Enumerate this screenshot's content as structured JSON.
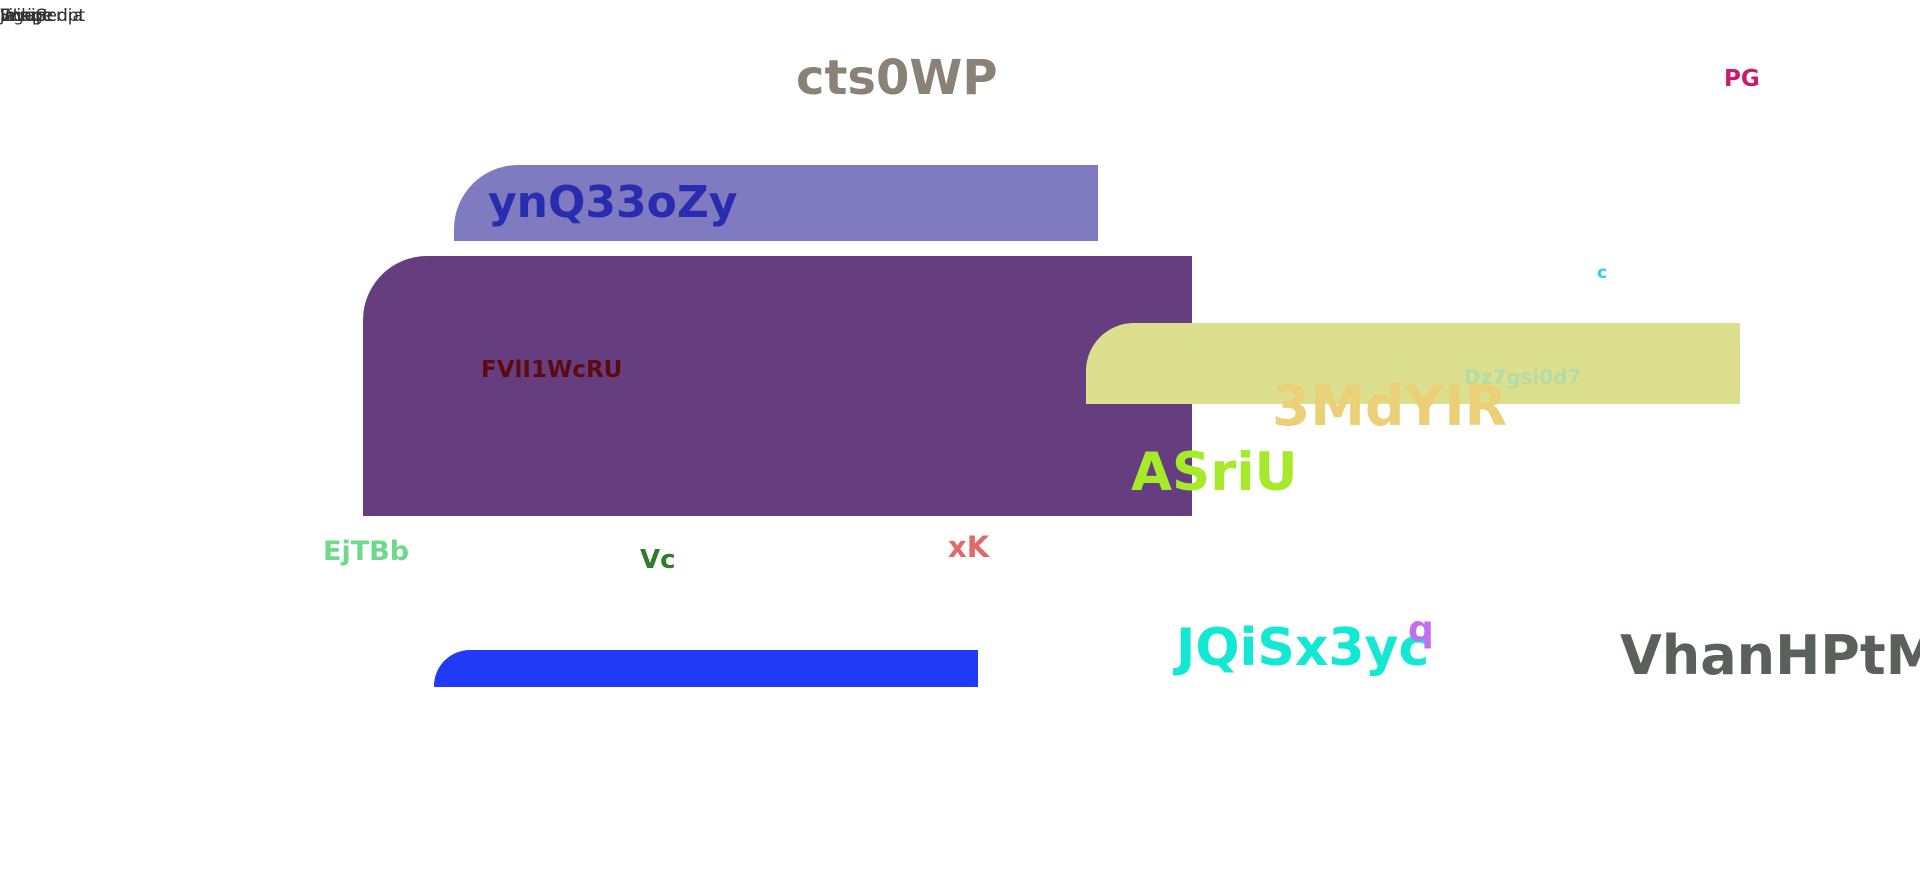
{
  "corner_labels": [
    "Wikipedia",
    "Image",
    "Figure",
    "Script",
    "JavaScript"
  ],
  "labels": {
    "title": "cts0WP",
    "top_right": "PG",
    "lavender_heading": "ynQ33oZy",
    "purple_text": "FVlI1WcRU",
    "tiny_c": "c",
    "faint_text": "Dz7gsi0d7",
    "orange_text": "3MdYIR",
    "lime_text": "ASriU",
    "green_left": "EjTBb",
    "green_dark": "Vc",
    "red_small": "xK",
    "cyan_text": "JQiSx3yc",
    "violet_small": "q",
    "gray_large": "VhanHPtM"
  },
  "colors": {
    "lavender": "#807ac0",
    "purple": "#663e80",
    "khaki": "#dcdf8e",
    "blue": "#1f3bf5"
  }
}
